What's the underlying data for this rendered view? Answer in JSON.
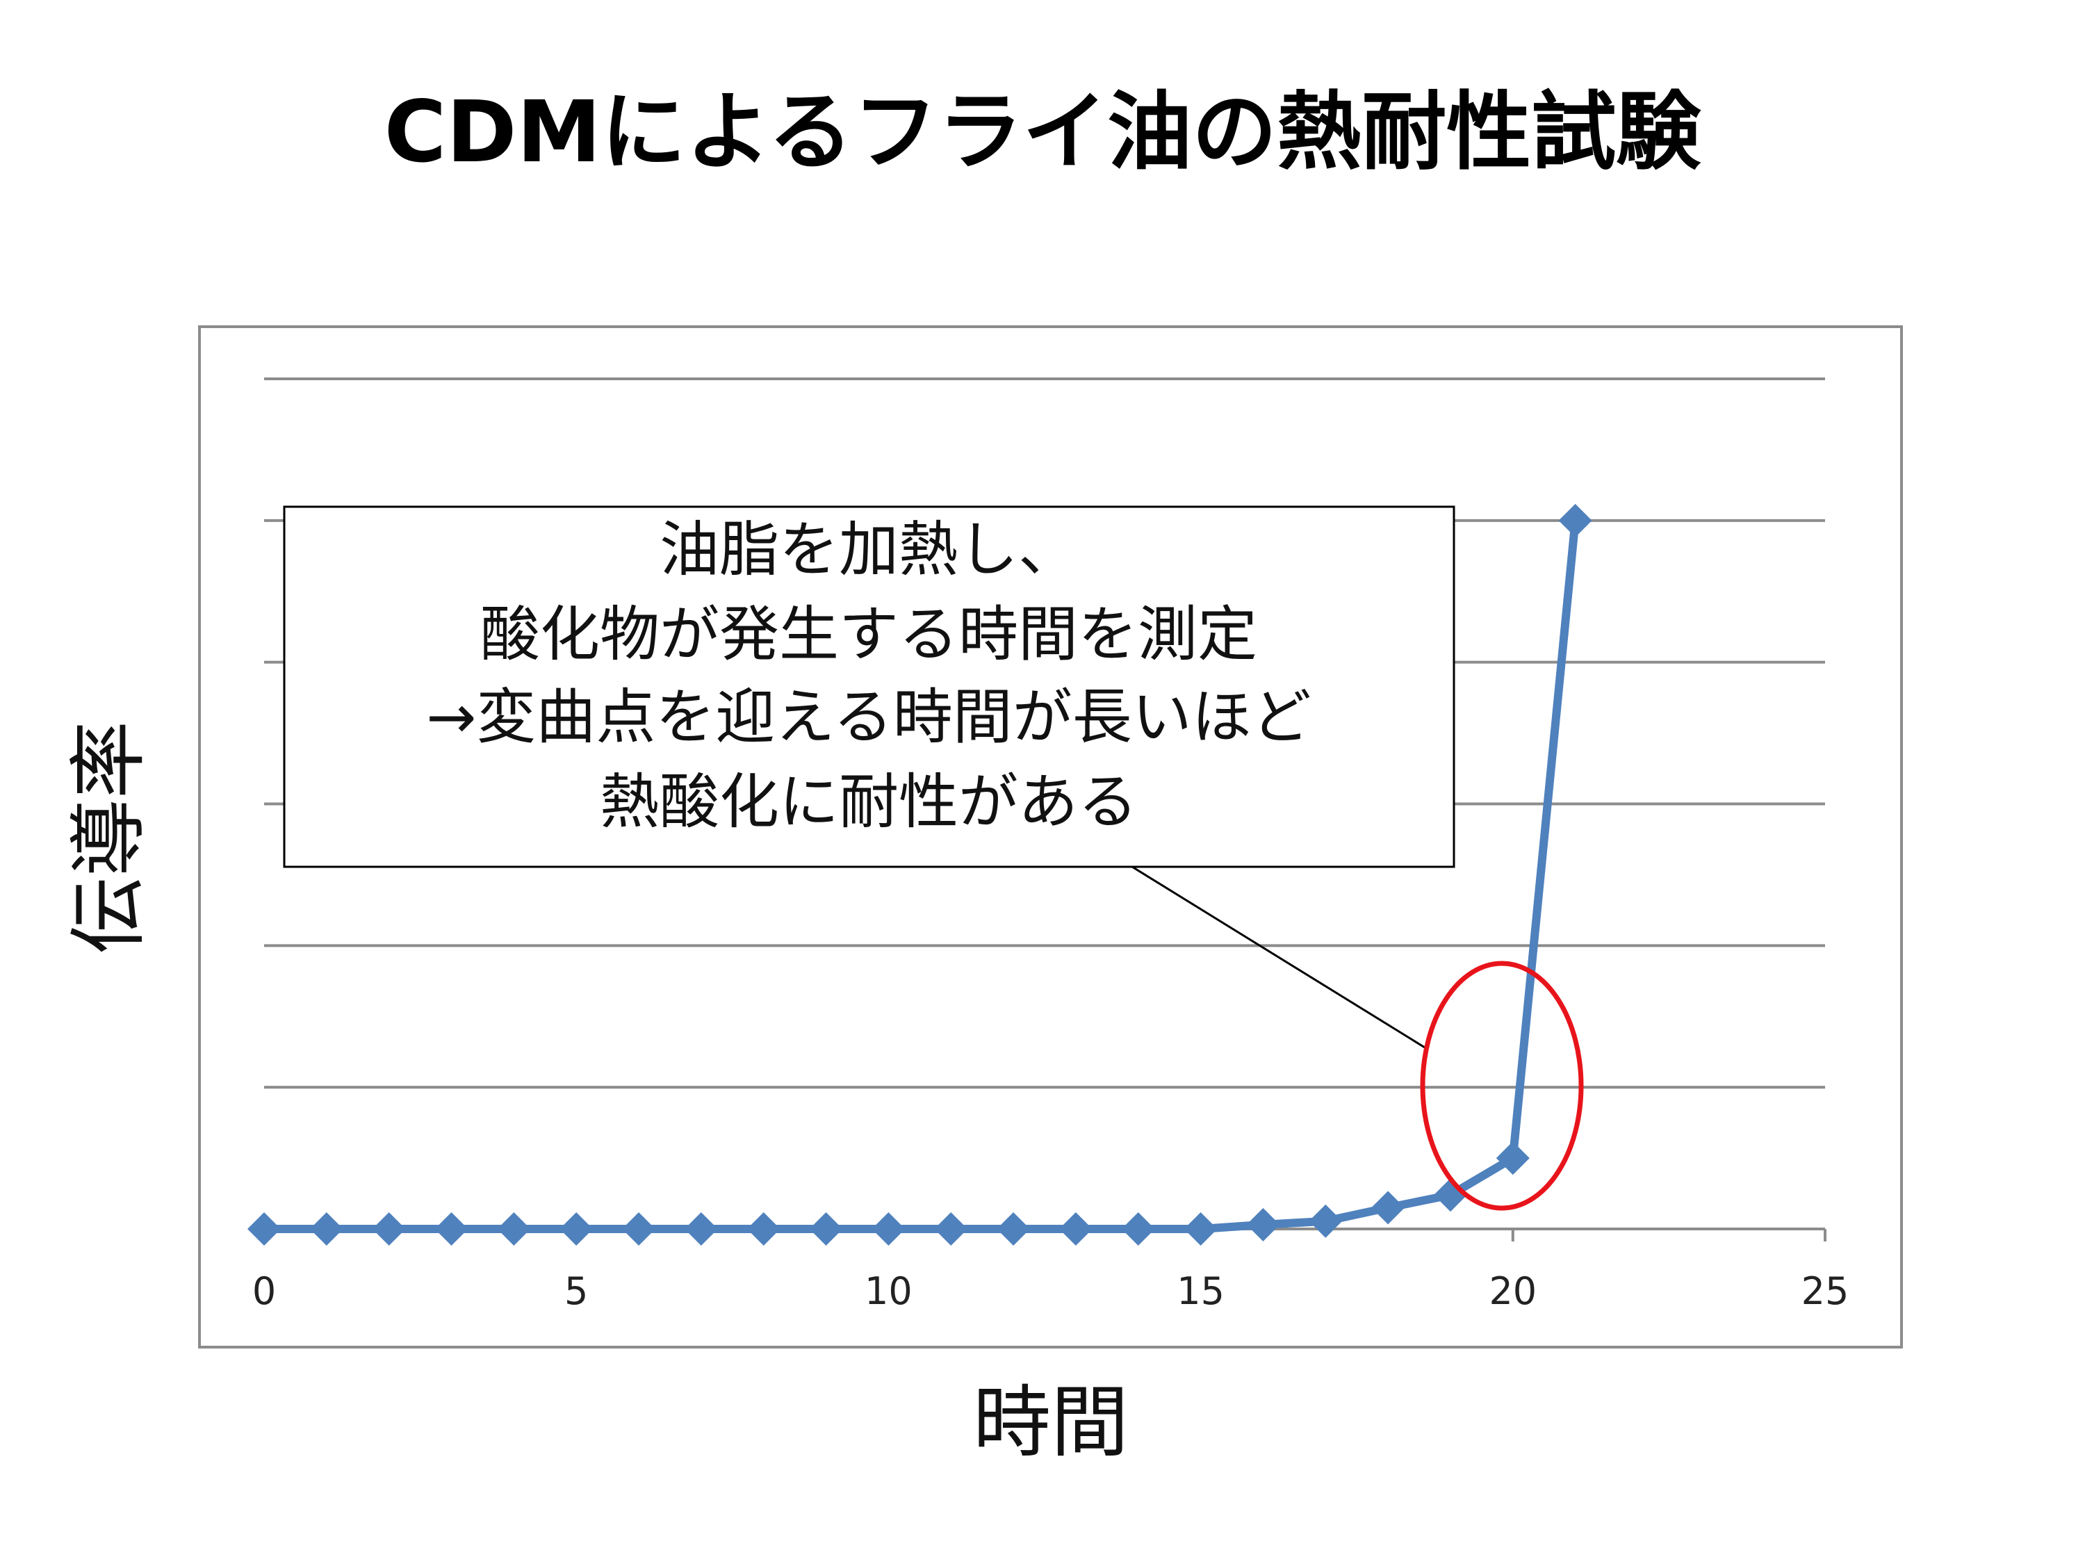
{
  "title": "CDMによるフライ油の熱耐性試験",
  "chart_data": {
    "type": "line",
    "title": "CDMによるフライ油の熱耐性試験",
    "xlabel": "時間",
    "ylabel": "伝導率",
    "xlim": [
      0,
      25
    ],
    "ylim": [
      0,
      6
    ],
    "x_ticks": [
      "0",
      "5",
      "10",
      "15",
      "20",
      "25"
    ],
    "y_ticks_labeled": false,
    "grid": true,
    "legend": "none",
    "series": [
      {
        "color": "#4f81bd",
        "marker": "diamond",
        "x": [
          0,
          1,
          2,
          3,
          4,
          5,
          6,
          7,
          8,
          9,
          10,
          11,
          12,
          13,
          14,
          15,
          16,
          17,
          18,
          19,
          20,
          21
        ],
        "y": [
          0,
          0,
          0,
          0,
          0,
          0,
          0,
          0,
          0,
          0,
          0,
          0,
          0,
          0,
          0,
          0,
          0.03,
          0.055,
          0.15,
          0.24,
          0.5,
          5
        ]
      }
    ],
    "annotations": [
      {
        "lines": [
          "油脂を加熱し、",
          "酸化物が発生する時間を測定",
          "→変曲点を迎える時間が長いほど",
          "熱酸化に耐性がある"
        ],
        "points_to": {
          "x": 20,
          "y": 0.5
        },
        "highlight": "red ellipse",
        "highlight_color": "#e8141b"
      }
    ]
  }
}
